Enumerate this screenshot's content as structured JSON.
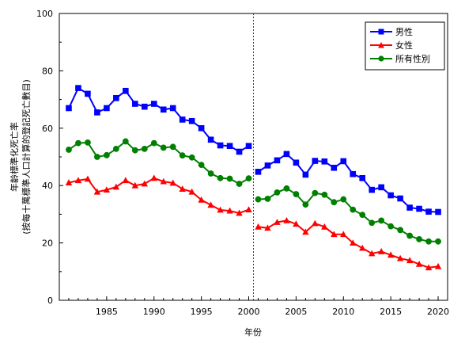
{
  "chart_data": {
    "type": "line",
    "xlabel": "年份",
    "ylabel_lines": [
      "年齡標準化死亡率",
      "(按每十萬標準人口計算的登記死亡數目)"
    ],
    "xlim": [
      1980,
      2021
    ],
    "ylim": [
      0,
      100
    ],
    "x_ticks": [
      1985,
      1990,
      1995,
      2000,
      2005,
      2010,
      2015,
      2020
    ],
    "y_ticks": [
      0,
      20,
      40,
      60,
      80,
      100
    ],
    "reference_line_x": 2000.5,
    "legend_position": "top-right",
    "series": [
      {
        "name": "男性",
        "color": "#0000ff",
        "marker": "square",
        "segments": [
          {
            "x": [
              1981,
              1982,
              1983,
              1984,
              1985,
              1986,
              1987,
              1988,
              1989,
              1990,
              1991,
              1992,
              1993,
              1994,
              1995,
              1996,
              1997,
              1998,
              1999,
              2000
            ],
            "y": [
              67.0,
              74.0,
              72.0,
              65.5,
              67.0,
              70.5,
              73.0,
              68.5,
              67.5,
              68.5,
              66.5,
              67.0,
              63.0,
              62.5,
              60.0,
              56.0,
              54.0,
              53.8,
              51.8,
              53.8
            ]
          },
          {
            "x": [
              2001,
              2002,
              2003,
              2004,
              2005,
              2006,
              2007,
              2008,
              2009,
              2010,
              2011,
              2012,
              2013,
              2014,
              2015,
              2016,
              2017,
              2018,
              2019,
              2020
            ],
            "y": [
              44.8,
              47.0,
              48.8,
              51.0,
              48.0,
              43.8,
              48.6,
              48.4,
              46.2,
              48.5,
              44.0,
              42.6,
              38.5,
              39.4,
              36.6,
              35.5,
              32.3,
              31.9,
              30.9,
              30.8
            ]
          }
        ]
      },
      {
        "name": "女性",
        "color": "#ff0000",
        "marker": "triangle",
        "segments": [
          {
            "x": [
              1981,
              1982,
              1983,
              1984,
              1985,
              1986,
              1987,
              1988,
              1989,
              1990,
              1991,
              1992,
              1993,
              1994,
              1995,
              1996,
              1997,
              1998,
              1999,
              2000
            ],
            "y": [
              41.0,
              41.8,
              42.3,
              37.8,
              38.5,
              39.5,
              41.8,
              40.0,
              40.6,
              42.6,
              41.4,
              40.9,
              38.8,
              37.8,
              35.0,
              33.2,
              31.5,
              31.2,
              30.4,
              31.6
            ]
          },
          {
            "x": [
              2001,
              2002,
              2003,
              2004,
              2005,
              2006,
              2007,
              2008,
              2009,
              2010,
              2011,
              2012,
              2013,
              2014,
              2015,
              2016,
              2017,
              2018,
              2019,
              2020
            ],
            "y": [
              25.6,
              25.2,
              27.2,
              27.8,
              26.6,
              23.8,
              26.8,
              25.6,
              23.0,
              23.0,
              20.0,
              18.2,
              16.3,
              17.0,
              15.8,
              14.6,
              13.9,
              12.6,
              11.4,
              11.8
            ]
          }
        ]
      },
      {
        "name": "所有性別",
        "color": "#008000",
        "marker": "circle",
        "segments": [
          {
            "x": [
              1981,
              1982,
              1983,
              1984,
              1985,
              1986,
              1987,
              1988,
              1989,
              1990,
              1991,
              1992,
              1993,
              1994,
              1995,
              1996,
              1997,
              1998,
              1999,
              2000
            ],
            "y": [
              52.5,
              54.8,
              55.0,
              50.0,
              50.6,
              52.8,
              55.4,
              52.3,
              52.8,
              54.8,
              53.2,
              53.5,
              50.5,
              49.8,
              47.2,
              44.2,
              42.6,
              42.4,
              40.6,
              42.5
            ]
          },
          {
            "x": [
              2001,
              2002,
              2003,
              2004,
              2005,
              2006,
              2007,
              2008,
              2009,
              2010,
              2011,
              2012,
              2013,
              2014,
              2015,
              2016,
              2017,
              2018,
              2019,
              2020
            ],
            "y": [
              35.2,
              35.4,
              37.6,
              39.0,
              37.0,
              33.4,
              37.4,
              36.8,
              34.2,
              35.2,
              31.6,
              29.8,
              27.0,
              27.8,
              25.8,
              24.5,
              22.5,
              21.3,
              20.5,
              20.5
            ]
          }
        ]
      }
    ]
  }
}
